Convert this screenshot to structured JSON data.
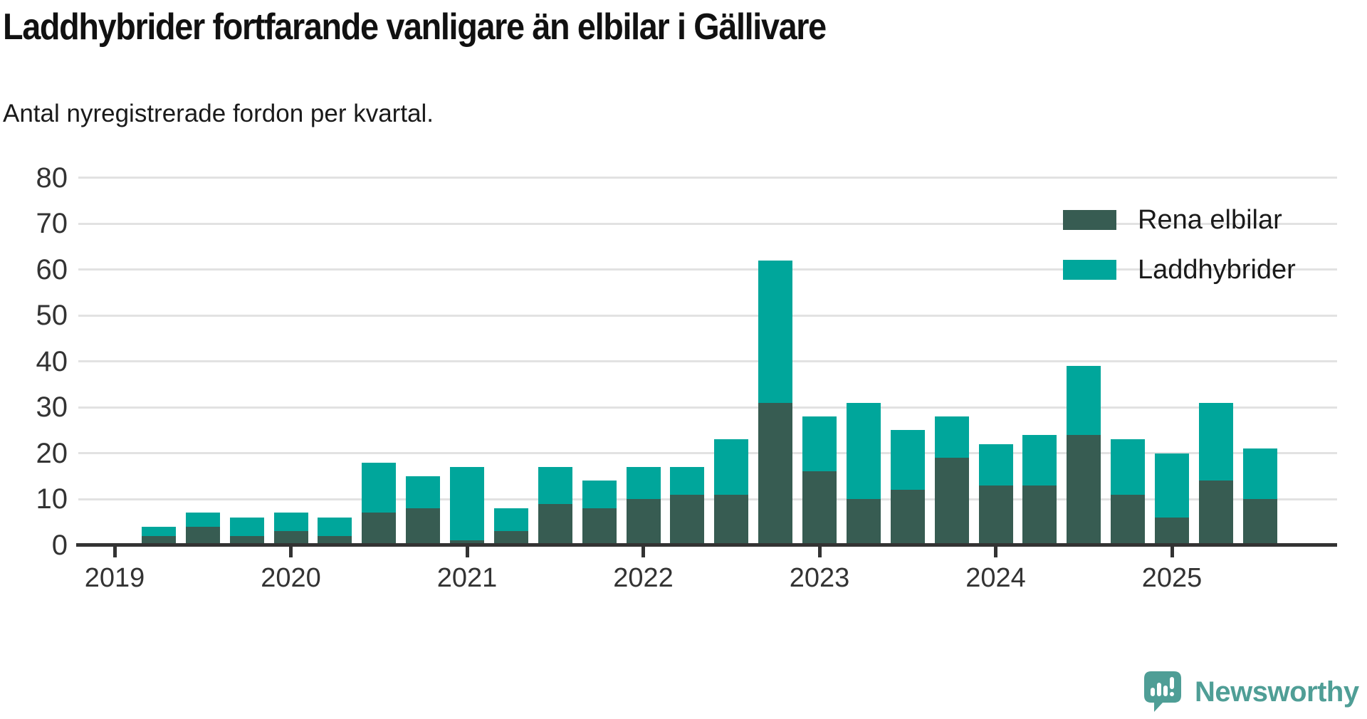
{
  "chart_data": {
    "type": "bar",
    "stacked": true,
    "title": "Laddhybrider fortfarande vanligare än elbilar i Gällivare",
    "subtitle": "Antal nyregistrerade fordon per kvartal.",
    "x": [
      "2019 Q1",
      "2019 Q2",
      "2019 Q3",
      "2019 Q4",
      "2020 Q1",
      "2020 Q2",
      "2020 Q3",
      "2020 Q4",
      "2021 Q1",
      "2021 Q2",
      "2021 Q3",
      "2021 Q4",
      "2022 Q1",
      "2022 Q2",
      "2022 Q3",
      "2022 Q4",
      "2023 Q1",
      "2023 Q2",
      "2023 Q3",
      "2023 Q4",
      "2024 Q1",
      "2024 Q2",
      "2024 Q3",
      "2024 Q4",
      "2025 Q1",
      "2025 Q2",
      "2025 Q3"
    ],
    "series": [
      {
        "name": "Rena elbilar",
        "color": "#375C52",
        "values": [
          0,
          2,
          4,
          2,
          3,
          2,
          7,
          8,
          1,
          3,
          9,
          8,
          10,
          11,
          11,
          31,
          16,
          10,
          12,
          19,
          13,
          13,
          24,
          11,
          6,
          14,
          10
        ]
      },
      {
        "name": "Laddhybrider",
        "color": "#00A69B",
        "values": [
          0,
          2,
          3,
          4,
          4,
          4,
          11,
          7,
          16,
          5,
          8,
          6,
          7,
          6,
          12,
          31,
          12,
          21,
          13,
          9,
          9,
          11,
          15,
          12,
          14,
          17,
          11
        ]
      }
    ],
    "totals": [
      0,
      4,
      7,
      6,
      7,
      6,
      18,
      15,
      17,
      8,
      17,
      14,
      17,
      17,
      23,
      62,
      28,
      31,
      25,
      28,
      22,
      24,
      39,
      23,
      20,
      31,
      21
    ],
    "ylim": [
      0,
      80
    ],
    "yticks": [
      0,
      10,
      20,
      30,
      40,
      50,
      60,
      70,
      80
    ],
    "year_labels": [
      "2019",
      "2020",
      "2021",
      "2022",
      "2023",
      "2024",
      "2025"
    ],
    "grid": true,
    "legend_position": "top-right",
    "colors": {
      "axis": "#333333",
      "grid": "#e2e2e2",
      "tick_text": "#333333"
    }
  },
  "branding": {
    "logo_text": "Newsworthy",
    "brand_color": "#4F9E96"
  }
}
